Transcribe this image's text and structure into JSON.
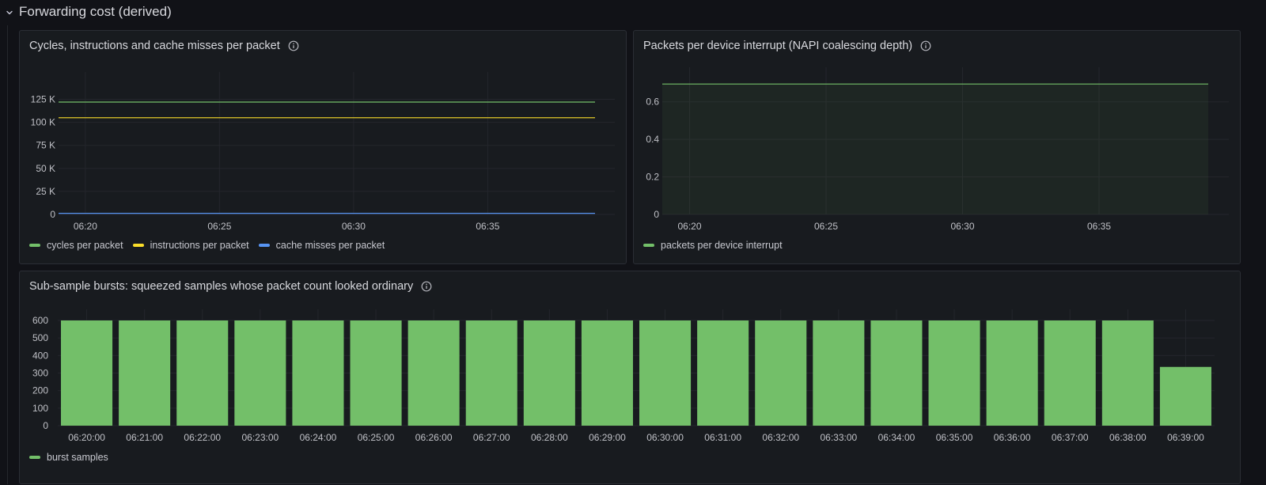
{
  "row": {
    "title": "Forwarding cost (derived)"
  },
  "colors": {
    "green": "#73bf69",
    "yellow": "#fade2a",
    "blue": "#5794f2",
    "grid": "#24262c",
    "axis_text": "#bfc0c6"
  },
  "panels": {
    "cycles": {
      "title": "Cycles, instructions and cache misses per packet",
      "info_icon": "info-icon",
      "legend": [
        {
          "label": "cycles per packet",
          "color": "#73bf69"
        },
        {
          "label": "instructions per packet",
          "color": "#fade2a"
        },
        {
          "label": "cache misses per packet",
          "color": "#5794f2"
        }
      ]
    },
    "napi": {
      "title": "Packets per device interrupt (NAPI coalescing depth)",
      "info_icon": "info-icon",
      "legend": [
        {
          "label": "packets per device interrupt",
          "color": "#73bf69"
        }
      ]
    },
    "bursts": {
      "title": "Sub-sample bursts: squeezed samples whose packet count looked ordinary",
      "info_icon": "info-icon",
      "legend": [
        {
          "label": "burst samples",
          "color": "#73bf69"
        }
      ]
    }
  },
  "chart_data": [
    {
      "type": "line",
      "title": "Cycles, instructions and cache misses per packet",
      "x_range": [
        "06:19",
        "06:39"
      ],
      "x_ticks": [
        "06:20",
        "06:25",
        "06:30",
        "06:35"
      ],
      "y_ticks": [
        "0",
        "25 K",
        "50 K",
        "75 K",
        "100 K",
        "125 K"
      ],
      "ylim": [
        0,
        137500
      ],
      "grid": true,
      "legend_placement": "bottom-left",
      "series": [
        {
          "name": "cycles per packet",
          "color": "#73bf69",
          "x": [
            "06:19",
            "06:39"
          ],
          "y": [
            122000,
            122000
          ]
        },
        {
          "name": "instructions per packet",
          "color": "#fade2a",
          "x": [
            "06:19",
            "06:39"
          ],
          "y": [
            105000,
            105000
          ]
        },
        {
          "name": "cache misses per packet",
          "color": "#5794f2",
          "x": [
            "06:19",
            "06:39"
          ],
          "y": [
            1200,
            1200
          ]
        }
      ]
    },
    {
      "type": "area",
      "title": "Packets per device interrupt (NAPI coalescing depth)",
      "x_range": [
        "06:19",
        "06:39"
      ],
      "x_ticks": [
        "06:20",
        "06:25",
        "06:30",
        "06:35"
      ],
      "y_ticks": [
        "0",
        "0.2",
        "0.4",
        "0.6"
      ],
      "ylim": [
        0,
        0.7
      ],
      "grid": true,
      "legend_placement": "bottom-left",
      "series": [
        {
          "name": "packets per device interrupt",
          "color": "#73bf69",
          "x": [
            "06:19",
            "06:39"
          ],
          "y": [
            0.695,
            0.695
          ]
        }
      ]
    },
    {
      "type": "bar",
      "title": "Sub-sample bursts: squeezed samples whose packet count looked ordinary",
      "categories": [
        "06:20:00",
        "06:21:00",
        "06:22:00",
        "06:23:00",
        "06:24:00",
        "06:25:00",
        "06:26:00",
        "06:27:00",
        "06:28:00",
        "06:29:00",
        "06:30:00",
        "06:31:00",
        "06:32:00",
        "06:33:00",
        "06:34:00",
        "06:35:00",
        "06:36:00",
        "06:37:00",
        "06:38:00",
        "06:39:00"
      ],
      "y_ticks": [
        "0",
        "100",
        "200",
        "300",
        "400",
        "500",
        "600"
      ],
      "ylim": [
        0,
        600
      ],
      "grid": true,
      "legend_placement": "bottom-left",
      "series": [
        {
          "name": "burst samples",
          "color": "#73bf69",
          "values": [
            600,
            600,
            600,
            600,
            600,
            600,
            600,
            600,
            600,
            600,
            600,
            600,
            600,
            600,
            600,
            600,
            600,
            600,
            600,
            335
          ]
        }
      ]
    }
  ]
}
